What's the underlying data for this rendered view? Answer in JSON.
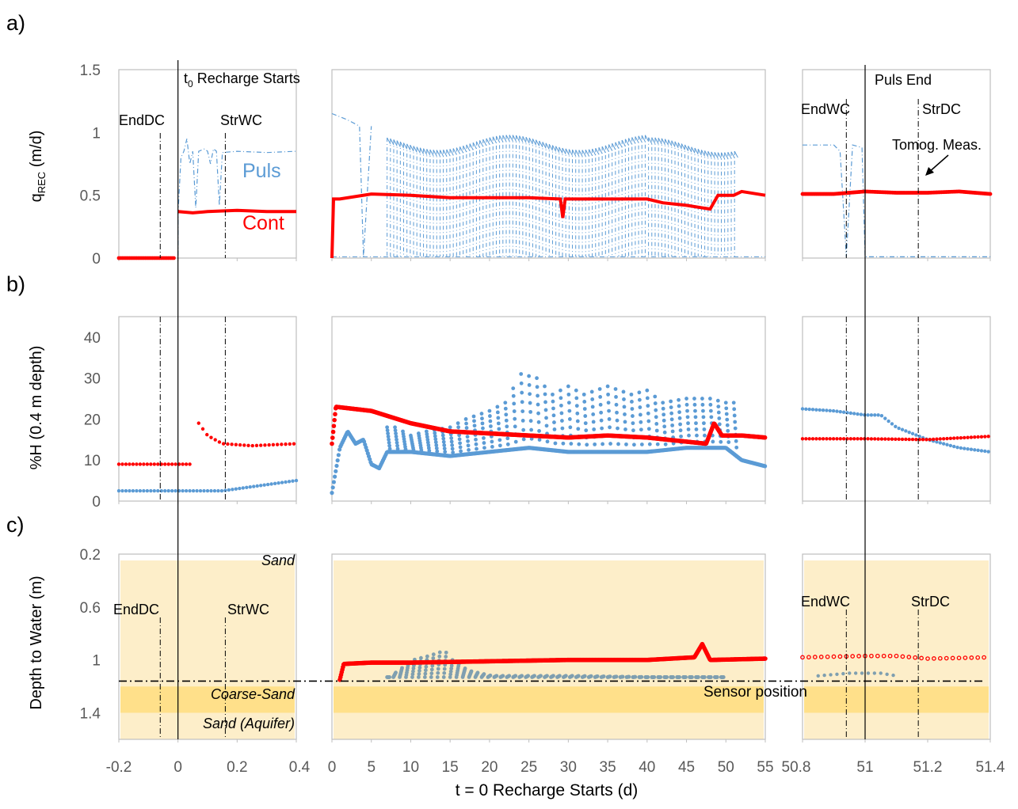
{
  "panel_labels": [
    "a)",
    "b)",
    "c)"
  ],
  "chart_data": {
    "type": "multi-panel line/scatter",
    "x_label": "t = 0 Recharge Starts (d)",
    "x_segments": [
      {
        "xlim": [
          -0.2,
          0.4
        ],
        "ticks": [
          "-0.2",
          "0",
          "0.2",
          "0.4"
        ]
      },
      {
        "xlim": [
          0,
          55
        ],
        "ticks": [
          "0",
          "5",
          "10",
          "15",
          "20",
          "25",
          "30",
          "35",
          "40",
          "45",
          "50",
          "55"
        ]
      },
      {
        "xlim": [
          50.8,
          51.4
        ],
        "ticks": [
          "50.8",
          "51",
          "51.2",
          "51.4"
        ]
      }
    ],
    "rows": [
      {
        "id": "a",
        "ylabel_main": "q",
        "ylabel_sub": "REC",
        "ylabel_rest": " (m/d)",
        "ylim": [
          0,
          1.5
        ],
        "yticks": [
          "0",
          "0.5",
          "1",
          "1.5"
        ],
        "series": [
          {
            "name": "Puls",
            "color": "#5b9bd5",
            "style": "dash-dot line",
            "seg1": [
              [
                -0.2,
                0
              ],
              [
                -0.0,
                0
              ],
              [
                0.0,
                0.35
              ],
              [
                0.01,
                0.8
              ],
              [
                0.02,
                0.85
              ],
              [
                0.03,
                0.95
              ],
              [
                0.04,
                0.75
              ],
              [
                0.05,
                0.85
              ],
              [
                0.06,
                0.4
              ],
              [
                0.07,
                0.85
              ],
              [
                0.09,
                0.87
              ],
              [
                0.1,
                0.85
              ],
              [
                0.11,
                0.75
              ],
              [
                0.12,
                0.87
              ],
              [
                0.13,
                0.85
              ],
              [
                0.14,
                0.42
              ],
              [
                0.15,
                0.84
              ],
              [
                0.2,
                0.85
              ],
              [
                0.3,
                0.84
              ],
              [
                0.4,
                0.85
              ]
            ],
            "seg2": [
              [
                0,
                1.15
              ],
              [
                2,
                1.1
              ],
              [
                3.5,
                1.05
              ],
              [
                4,
                0.01
              ],
              [
                5,
                1.05
              ],
              [
                6,
                1.05
              ],
              [
                7,
                0.01
              ],
              [
                47,
                0.01
              ],
              [
                51.5,
                0.9
              ],
              [
                51.6,
                0.01
              ],
              [
                55,
                0.01
              ]
            ],
            "seg3": [
              [
                50.8,
                0.9
              ],
              [
                50.9,
                0.9
              ],
              [
                50.92,
                0.85
              ],
              [
                50.94,
                0.01
              ],
              [
                50.96,
                0.9
              ],
              [
                50.99,
                0.88
              ],
              [
                51.0,
                0.01
              ],
              [
                51.4,
                0.01
              ]
            ]
          },
          {
            "name": "Cont",
            "color": "#ff0000",
            "style": "thick line",
            "seg1": [
              [
                -0.2,
                0
              ],
              [
                -0.01,
                0
              ],
              [
                0.0,
                0.37
              ],
              [
                0.05,
                0.36
              ],
              [
                0.1,
                0.37
              ],
              [
                0.2,
                0.38
              ],
              [
                0.3,
                0.37
              ],
              [
                0.4,
                0.37
              ]
            ],
            "seg2": [
              [
                0,
                0
              ],
              [
                0.2,
                0.47
              ],
              [
                1,
                0.47
              ],
              [
                5,
                0.51
              ],
              [
                10,
                0.5
              ],
              [
                15,
                0.48
              ],
              [
                20,
                0.48
              ],
              [
                25,
                0.48
              ],
              [
                29,
                0.47
              ],
              [
                29.3,
                0.32
              ],
              [
                29.6,
                0.47
              ],
              [
                35,
                0.47
              ],
              [
                40,
                0.47
              ],
              [
                42,
                0.44
              ],
              [
                45,
                0.42
              ],
              [
                48,
                0.39
              ],
              [
                49,
                0.5
              ],
              [
                51,
                0.5
              ],
              [
                52,
                0.53
              ],
              [
                55,
                0.5
              ]
            ],
            "seg3": [
              [
                50.8,
                0.51
              ],
              [
                50.9,
                0.51
              ],
              [
                51,
                0.53
              ],
              [
                51.1,
                0.52
              ],
              [
                51.2,
                0.52
              ],
              [
                51.3,
                0.53
              ],
              [
                51.4,
                0.51
              ]
            ]
          }
        ],
        "annotations": [
          "t",
          "0",
          " Recharge Starts",
          "EndDC",
          "StrWC",
          "Puls",
          "Cont",
          "Puls End",
          "EndWC",
          "StrDC",
          "Tomog. Meas."
        ]
      },
      {
        "id": "b",
        "ylabel": "%H  (0.4 m depth)",
        "ylim": [
          0,
          45
        ],
        "yticks": [
          "0",
          "10",
          "20",
          "30",
          "40"
        ],
        "series": [
          {
            "name": "Puls",
            "color": "#5b9bd5",
            "style": "dots",
            "seg1": [
              [
                -0.2,
                2.5
              ],
              [
                0.15,
                2.5
              ],
              [
                0.2,
                3
              ],
              [
                0.3,
                4
              ],
              [
                0.4,
                5
              ]
            ],
            "seg2": [
              [
                0,
                2
              ],
              [
                1,
                13
              ],
              [
                2,
                17
              ],
              [
                3,
                14
              ],
              [
                4,
                15
              ],
              [
                5,
                9
              ],
              [
                6,
                8
              ],
              [
                7,
                12
              ],
              [
                10,
                12
              ],
              [
                15,
                11
              ],
              [
                20,
                12
              ],
              [
                25,
                13
              ],
              [
                30,
                12
              ],
              [
                35,
                12
              ],
              [
                40,
                12
              ],
              [
                45,
                13
              ],
              [
                50,
                13
              ],
              [
                52,
                10
              ],
              [
                55,
                8.5
              ]
            ],
            "seg2_peaks": [
              [
                8,
                18
              ],
              [
                10,
                16
              ],
              [
                12,
                17
              ],
              [
                15,
                18
              ],
              [
                17,
                20
              ],
              [
                20,
                22
              ],
              [
                22,
                24
              ],
              [
                24,
                31
              ],
              [
                26,
                30
              ],
              [
                28,
                26
              ],
              [
                30,
                28
              ],
              [
                32,
                26
              ],
              [
                35,
                28
              ],
              [
                38,
                26
              ],
              [
                40,
                27
              ],
              [
                42,
                24
              ],
              [
                45,
                25
              ],
              [
                48,
                25
              ],
              [
                50,
                24
              ]
            ],
            "seg3": [
              [
                50.8,
                22.5
              ],
              [
                50.9,
                22
              ],
              [
                51,
                21
              ],
              [
                51.05,
                21
              ],
              [
                51.1,
                18
              ],
              [
                51.2,
                15
              ],
              [
                51.3,
                13
              ],
              [
                51.4,
                12
              ]
            ]
          },
          {
            "name": "Cont",
            "color": "#ff0000",
            "style": "dots",
            "seg1": [
              [
                -0.2,
                9
              ],
              [
                0.05,
                9
              ],
              [
                0.07,
                19
              ],
              [
                0.1,
                16
              ],
              [
                0.15,
                14
              ],
              [
                0.25,
                13.5
              ],
              [
                0.4,
                14
              ]
            ],
            "seg2": [
              [
                0,
                14
              ],
              [
                0.5,
                23
              ],
              [
                5,
                22
              ],
              [
                10,
                19
              ],
              [
                15,
                17
              ],
              [
                20,
                16.5
              ],
              [
                25,
                16
              ],
              [
                30,
                15.5
              ],
              [
                35,
                16
              ],
              [
                40,
                15.5
              ],
              [
                45,
                14.5
              ],
              [
                47.5,
                14
              ],
              [
                48.5,
                19
              ],
              [
                49.5,
                16
              ],
              [
                52,
                16
              ],
              [
                55,
                15.5
              ]
            ],
            "seg3": [
              [
                50.8,
                15.2
              ],
              [
                51,
                15.2
              ],
              [
                51.2,
                15
              ],
              [
                51.4,
                15.8
              ]
            ]
          }
        ]
      },
      {
        "id": "c",
        "ylabel": "Depth to Water (m)",
        "ylim": [
          0.2,
          1.6
        ],
        "yticks": [
          "0.2",
          "0.6",
          "1",
          "1.4"
        ],
        "layers": [
          {
            "name": "Sand",
            "top": 0.2,
            "bottom": 1.2,
            "color": "#fdeec9"
          },
          {
            "name": "Coarse-Sand",
            "top": 1.2,
            "bottom": 1.4,
            "color": "#ffe08a"
          },
          {
            "name": "Sand (Aquifer)",
            "top": 1.4,
            "bottom": 1.6,
            "color": "#fdeec9"
          }
        ],
        "sensor_position_m": 1.16,
        "series": [
          {
            "name": "Cont",
            "color": "#ff0000",
            "seg2": [
              [
                1,
                1.15
              ],
              [
                1.5,
                1.03
              ],
              [
                5,
                1.02
              ],
              [
                10,
                1.02
              ],
              [
                20,
                1.01
              ],
              [
                30,
                1.0
              ],
              [
                40,
                1.0
              ],
              [
                46,
                0.98
              ],
              [
                47,
                0.88
              ],
              [
                48,
                1.0
              ],
              [
                55,
                0.99
              ]
            ],
            "seg3": [
              [
                50.8,
                0.98
              ],
              [
                51,
                0.97
              ],
              [
                51.1,
                0.97
              ],
              [
                51.2,
                0.99
              ],
              [
                51.4,
                0.98
              ]
            ]
          },
          {
            "name": "Puls",
            "color": "#7f9fb0",
            "seg2": [
              [
                7,
                1.13
              ],
              [
                10,
                1.0
              ],
              [
                12,
                0.97
              ],
              [
                14,
                0.93
              ],
              [
                15,
                1.0
              ],
              [
                17,
                1.08
              ],
              [
                20,
                1.12
              ],
              [
                30,
                1.12
              ],
              [
                40,
                1.13
              ],
              [
                50,
                1.13
              ]
            ],
            "seg3": [
              [
                50.85,
                1.12
              ],
              [
                50.95,
                1.1
              ],
              [
                51.05,
                1.1
              ],
              [
                51.1,
                1.12
              ]
            ]
          }
        ]
      }
    ],
    "vertical_markers": {
      "seg1": [
        {
          "label": "EndDC",
          "x": -0.06
        },
        {
          "label": "StrWC",
          "x": 0.16
        }
      ],
      "seg3": [
        {
          "label": "EndWC",
          "x": 50.94
        },
        {
          "label": "StrDC",
          "x": 51.17
        }
      ],
      "t0_line_x": 0,
      "puls_end_x": 51
    }
  },
  "labels": {
    "t0_t": "t",
    "t0_sub": "0",
    "t0_rest": " Recharge Starts",
    "enddc": "EndDC",
    "strwc": "StrWC",
    "puls": "Puls",
    "cont": "Cont",
    "puls_end": "Puls End",
    "endwc": "EndWC",
    "strdc": "StrDC",
    "tomog": "Tomog. Meas.",
    "sand": "Sand",
    "coarse_sand": "Coarse-Sand",
    "sand_aquifer": "Sand (Aquifer)",
    "sensor_position": "Sensor position"
  }
}
